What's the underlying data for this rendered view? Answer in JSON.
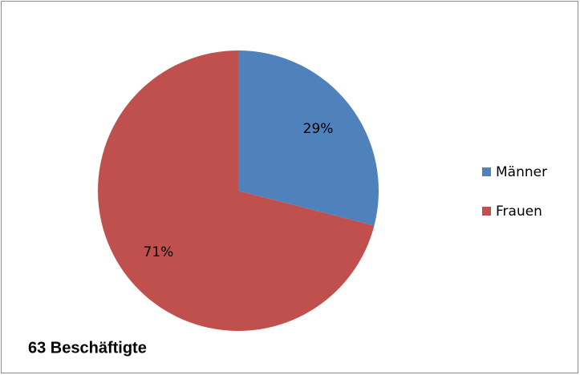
{
  "chart_data": {
    "type": "pie",
    "categories": [
      "Männer",
      "Frauen"
    ],
    "values": [
      29,
      71
    ],
    "value_labels": [
      "29%",
      "71%"
    ],
    "colors": [
      "#4f81bd",
      "#c0504d"
    ],
    "annotation": "63 Beschäftigte",
    "legend": "right"
  }
}
